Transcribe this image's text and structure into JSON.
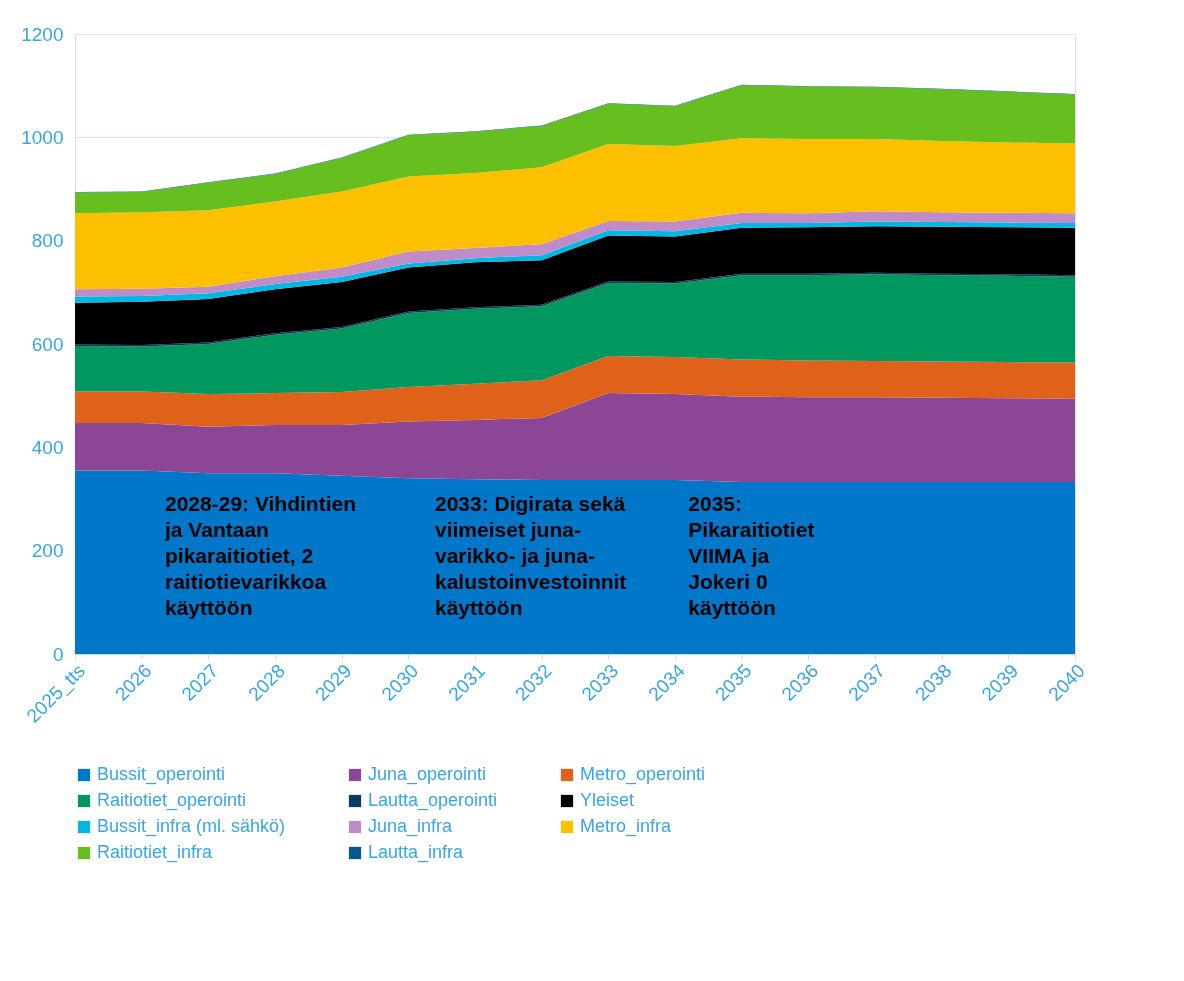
{
  "chart_data": {
    "type": "area",
    "stacked": true,
    "categories": [
      "2025_tts",
      "2026",
      "2027",
      "2028",
      "2029",
      "2030",
      "2031",
      "2032",
      "2033",
      "2034",
      "2035",
      "2036",
      "2037",
      "2038",
      "2039",
      "2040"
    ],
    "ylim": [
      0,
      1200
    ],
    "yticks": [
      0,
      200,
      400,
      600,
      800,
      1000,
      1200
    ],
    "grid": "y",
    "legend": "bottom",
    "series": [
      {
        "name": "Bussit_operointi",
        "color": "#0077c8",
        "values": [
          355,
          355,
          350,
          350,
          345,
          340,
          338,
          337,
          337,
          337,
          333,
          333,
          333,
          333,
          333,
          333
        ]
      },
      {
        "name": "Juna_operointi",
        "color": "#8b4796",
        "values": [
          92,
          92,
          90,
          93,
          98,
          110,
          115,
          120,
          168,
          166,
          165,
          164,
          164,
          163,
          162,
          161
        ]
      },
      {
        "name": "Metro_operointi",
        "color": "#e0621a",
        "values": [
          61,
          61,
          63,
          62,
          64,
          67,
          70,
          73,
          72,
          72,
          72,
          71,
          70,
          70,
          70,
          70
        ]
      },
      {
        "name": "Raitiotiet_operointi",
        "color": "#00985f",
        "values": [
          88,
          87,
          97,
          113,
          123,
          143,
          145,
          143,
          141,
          142,
          163,
          165,
          168,
          167,
          167,
          166
        ]
      },
      {
        "name": "Lautta_operointi",
        "color": "#0d3a5c",
        "values": [
          3,
          3,
          3,
          3,
          3,
          3,
          3,
          3,
          3,
          3,
          3,
          3,
          3,
          3,
          3,
          3
        ]
      },
      {
        "name": "Yleiset",
        "color": "#000000",
        "values": [
          81,
          84,
          84,
          85,
          87,
          85,
          87,
          86,
          89,
          88,
          89,
          90,
          90,
          91,
          91,
          92
        ]
      },
      {
        "name": "Bussit_infra (ml. sähkö)",
        "color": "#00b8e4",
        "values": [
          12,
          11,
          11,
          10,
          10,
          8,
          8,
          10,
          10,
          10,
          9,
          8,
          9,
          9,
          9,
          9
        ]
      },
      {
        "name": "Juna_infra",
        "color": "#bf8bc8",
        "values": [
          14,
          14,
          13,
          15,
          18,
          23,
          20,
          21,
          18,
          19,
          20,
          19,
          20,
          19,
          19,
          19
        ]
      },
      {
        "name": "Metro_infra",
        "color": "#fdc000",
        "values": [
          147,
          148,
          148,
          145,
          147,
          145,
          145,
          149,
          149,
          146,
          144,
          144,
          140,
          138,
          136,
          135
        ]
      },
      {
        "name": "Raitiotiet_infra",
        "color": "#67be1f",
        "values": [
          40,
          39,
          53,
          53,
          65,
          80,
          80,
          80,
          78,
          77,
          103,
          101,
          100,
          100,
          98,
          95
        ]
      },
      {
        "name": "Lautta_infra",
        "color": "#005a8c",
        "values": [
          1,
          1,
          1,
          1,
          1,
          1,
          1,
          1,
          1,
          1,
          1,
          1,
          1,
          1,
          1,
          1
        ]
      }
    ],
    "annotations": [
      "2028-29: Vihdintien\nja Vantaan\npikaraitiotiet, 2\nraitiotievarikkoa\nkäyttöön",
      "2033: Digirata sekä\nviimeiset juna-\nvarikko- ja juna-\nkalustoinvestoinnit\nkäyttöön",
      "2035:\nPikaraitiotiet\nVIIMA ja\nJokeri 0\nkäyttöön"
    ]
  }
}
